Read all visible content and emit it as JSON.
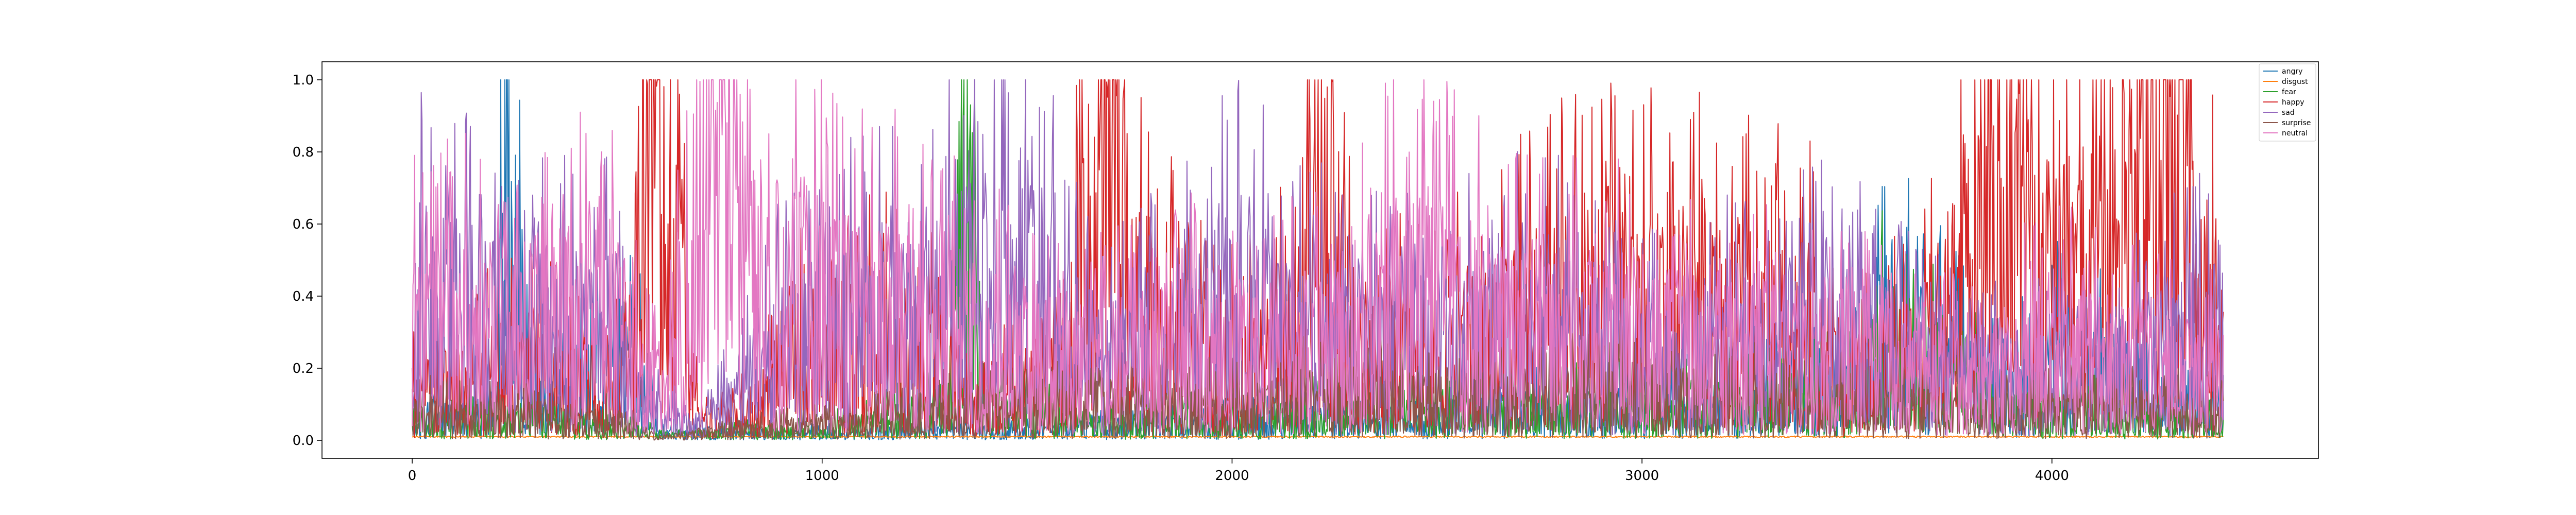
{
  "chart_data": {
    "type": "line",
    "title": "",
    "xlabel": "",
    "ylabel": "",
    "xlim": [
      -220,
      4650
    ],
    "ylim": [
      -0.05,
      1.05
    ],
    "x_ticks": [
      0,
      1000,
      2000,
      3000,
      4000
    ],
    "y_ticks": [
      0.0,
      0.2,
      0.4,
      0.6,
      0.8,
      1.0
    ],
    "x_tick_labels": [
      "0",
      "1000",
      "2000",
      "3000",
      "4000"
    ],
    "y_tick_labels": [
      "0.0",
      "0.2",
      "0.4",
      "0.6",
      "0.8",
      "1.0"
    ],
    "n_points": 4420,
    "grid": false,
    "legend_position": "top-right",
    "series": [
      {
        "name": "angry",
        "color": "#1f77b4",
        "anchors": [
          [
            0,
            0.05
          ],
          [
            200,
            0.1
          ],
          [
            225,
            0.73
          ],
          [
            300,
            0.1
          ],
          [
            555,
            0.28
          ],
          [
            600,
            0.02
          ],
          [
            1000,
            0.02
          ],
          [
            1500,
            0.03
          ],
          [
            2000,
            0.05
          ],
          [
            2500,
            0.08
          ],
          [
            3000,
            0.1
          ],
          [
            3500,
            0.15
          ],
          [
            3600,
            0.35
          ],
          [
            3900,
            0.15
          ],
          [
            4000,
            0.25
          ],
          [
            4420,
            0.1
          ]
        ]
      },
      {
        "name": "disgust",
        "color": "#ff7f0e",
        "anchors": [
          [
            0,
            0.01
          ],
          [
            4420,
            0.01
          ]
        ]
      },
      {
        "name": "fear",
        "color": "#2ca02c",
        "anchors": [
          [
            0,
            0.06
          ],
          [
            300,
            0.06
          ],
          [
            600,
            0.02
          ],
          [
            1000,
            0.03
          ],
          [
            1300,
            0.1
          ],
          [
            1345,
            0.87
          ],
          [
            1400,
            0.1
          ],
          [
            1700,
            0.05
          ],
          [
            2200,
            0.08
          ],
          [
            3000,
            0.1
          ],
          [
            3500,
            0.15
          ],
          [
            3600,
            0.3
          ],
          [
            3900,
            0.1
          ],
          [
            4420,
            0.05
          ]
        ]
      },
      {
        "name": "happy",
        "color": "#d62728",
        "anchors": [
          [
            0,
            0.15
          ],
          [
            300,
            0.25
          ],
          [
            450,
            0.15
          ],
          [
            530,
            0.2
          ],
          [
            560,
            0.95
          ],
          [
            600,
            1.0
          ],
          [
            640,
            0.6
          ],
          [
            700,
            0.05
          ],
          [
            850,
            0.1
          ],
          [
            900,
            0.25
          ],
          [
            1000,
            0.3
          ],
          [
            1100,
            0.3
          ],
          [
            1250,
            0.3
          ],
          [
            1300,
            0.15
          ],
          [
            1500,
            0.15
          ],
          [
            1600,
            0.35
          ],
          [
            1710,
            1.0
          ],
          [
            1750,
            0.5
          ],
          [
            1850,
            0.35
          ],
          [
            2000,
            0.25
          ],
          [
            2100,
            0.25
          ],
          [
            2240,
            0.85
          ],
          [
            2300,
            0.2
          ],
          [
            2400,
            0.3
          ],
          [
            2600,
            0.3
          ],
          [
            2750,
            0.4
          ],
          [
            2900,
            0.45
          ],
          [
            3000,
            0.45
          ],
          [
            3200,
            0.45
          ],
          [
            3400,
            0.4
          ],
          [
            3500,
            0.2
          ],
          [
            3700,
            0.3
          ],
          [
            3800,
            0.6
          ],
          [
            3850,
            1.0
          ],
          [
            3920,
            0.7
          ],
          [
            4000,
            0.5
          ],
          [
            4100,
            0.6
          ],
          [
            4200,
            0.75
          ],
          [
            4250,
            0.95
          ],
          [
            4320,
            0.95
          ],
          [
            4350,
            0.5
          ],
          [
            4420,
            0.4
          ]
        ]
      },
      {
        "name": "sad",
        "color": "#9467bd",
        "anchors": [
          [
            0,
            0.45
          ],
          [
            150,
            0.4
          ],
          [
            300,
            0.35
          ],
          [
            500,
            0.35
          ],
          [
            560,
            0.1
          ],
          [
            700,
            0.05
          ],
          [
            800,
            0.15
          ],
          [
            900,
            0.3
          ],
          [
            1000,
            0.35
          ],
          [
            1200,
            0.4
          ],
          [
            1400,
            0.5
          ],
          [
            1500,
            0.55
          ],
          [
            1600,
            0.35
          ],
          [
            1700,
            0.25
          ],
          [
            1900,
            0.35
          ],
          [
            2000,
            0.45
          ],
          [
            2200,
            0.35
          ],
          [
            2400,
            0.3
          ],
          [
            2600,
            0.35
          ],
          [
            2800,
            0.35
          ],
          [
            3000,
            0.25
          ],
          [
            3200,
            0.3
          ],
          [
            3400,
            0.35
          ],
          [
            3600,
            0.3
          ],
          [
            3800,
            0.2
          ],
          [
            4000,
            0.2
          ],
          [
            4200,
            0.25
          ],
          [
            4300,
            0.3
          ],
          [
            4420,
            0.35
          ]
        ]
      },
      {
        "name": "surprise",
        "color": "#8c564b",
        "anchors": [
          [
            0,
            0.08
          ],
          [
            500,
            0.06
          ],
          [
            600,
            0.01
          ],
          [
            1000,
            0.05
          ],
          [
            1500,
            0.1
          ],
          [
            2000,
            0.1
          ],
          [
            2300,
            0.15
          ],
          [
            2500,
            0.12
          ],
          [
            3000,
            0.15
          ],
          [
            3300,
            0.12
          ],
          [
            3600,
            0.1
          ],
          [
            3800,
            0.08
          ],
          [
            4100,
            0.1
          ],
          [
            4420,
            0.08
          ]
        ]
      },
      {
        "name": "neutral",
        "color": "#e377c2",
        "anchors": [
          [
            0,
            0.35
          ],
          [
            300,
            0.4
          ],
          [
            500,
            0.4
          ],
          [
            560,
            0.2
          ],
          [
            620,
            0.15
          ],
          [
            700,
            0.7
          ],
          [
            760,
            0.85
          ],
          [
            850,
            0.5
          ],
          [
            1000,
            0.45
          ],
          [
            1200,
            0.4
          ],
          [
            1300,
            0.35
          ],
          [
            1500,
            0.3
          ],
          [
            1600,
            0.25
          ],
          [
            1800,
            0.3
          ],
          [
            2000,
            0.3
          ],
          [
            2200,
            0.3
          ],
          [
            2400,
            0.5
          ],
          [
            2500,
            0.45
          ],
          [
            2700,
            0.35
          ],
          [
            3000,
            0.35
          ],
          [
            3300,
            0.3
          ],
          [
            3600,
            0.25
          ],
          [
            3800,
            0.2
          ],
          [
            4000,
            0.3
          ],
          [
            4200,
            0.25
          ],
          [
            4420,
            0.2
          ]
        ]
      }
    ]
  }
}
